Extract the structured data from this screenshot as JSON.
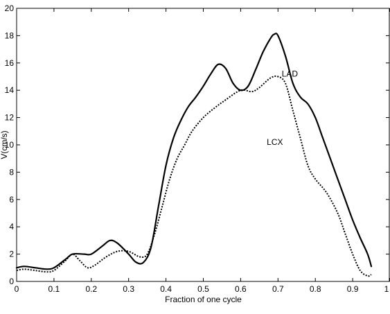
{
  "chart_data": {
    "type": "line",
    "title": "",
    "xlabel": "Fraction of one cycle",
    "ylabel": "V(cm/s)",
    "xlim": [
      0,
      1
    ],
    "ylim": [
      0,
      20
    ],
    "xticks": [
      0,
      0.1,
      0.2,
      0.3,
      0.4,
      0.5,
      0.6,
      0.7,
      0.8,
      0.9,
      1
    ],
    "xtick_labels": [
      "0",
      "0.1",
      "0.2",
      "0.3",
      "0.4",
      "0.5",
      "0.6",
      "0.7",
      "0.8",
      "0.9",
      "1"
    ],
    "yticks": [
      0,
      2,
      4,
      6,
      8,
      10,
      12,
      14,
      16,
      18,
      20
    ],
    "ytick_labels": [
      "0",
      "2",
      "4",
      "6",
      "8",
      "10",
      "12",
      "14",
      "16",
      "18",
      "20"
    ],
    "grid": false,
    "series": [
      {
        "name": "LAD",
        "style": "solid",
        "color": "#000000",
        "label_at": [
          0.71,
          15
        ],
        "points": [
          [
            0,
            1.0
          ],
          [
            0.02,
            1.1
          ],
          [
            0.05,
            1.0
          ],
          [
            0.08,
            0.9
          ],
          [
            0.1,
            1.0
          ],
          [
            0.13,
            1.6
          ],
          [
            0.15,
            2.0
          ],
          [
            0.18,
            2.0
          ],
          [
            0.2,
            2.0
          ],
          [
            0.23,
            2.6
          ],
          [
            0.25,
            3.0
          ],
          [
            0.27,
            2.8
          ],
          [
            0.3,
            2.0
          ],
          [
            0.32,
            1.4
          ],
          [
            0.34,
            1.4
          ],
          [
            0.36,
            2.5
          ],
          [
            0.38,
            5.5
          ],
          [
            0.4,
            8.5
          ],
          [
            0.42,
            10.5
          ],
          [
            0.44,
            11.8
          ],
          [
            0.46,
            12.8
          ],
          [
            0.48,
            13.5
          ],
          [
            0.5,
            14.3
          ],
          [
            0.52,
            15.2
          ],
          [
            0.54,
            15.9
          ],
          [
            0.56,
            15.6
          ],
          [
            0.58,
            14.5
          ],
          [
            0.6,
            14.0
          ],
          [
            0.62,
            14.3
          ],
          [
            0.64,
            15.5
          ],
          [
            0.66,
            16.8
          ],
          [
            0.68,
            17.8
          ],
          [
            0.69,
            18.1
          ],
          [
            0.7,
            18.0
          ],
          [
            0.72,
            16.5
          ],
          [
            0.74,
            14.5
          ],
          [
            0.76,
            13.5
          ],
          [
            0.78,
            13.0
          ],
          [
            0.8,
            12.0
          ],
          [
            0.82,
            10.5
          ],
          [
            0.84,
            9.0
          ],
          [
            0.86,
            7.5
          ],
          [
            0.88,
            6.0
          ],
          [
            0.9,
            4.5
          ],
          [
            0.92,
            3.2
          ],
          [
            0.94,
            2.0
          ],
          [
            0.95,
            1.1
          ]
        ]
      },
      {
        "name": "LCX",
        "style": "dotted",
        "color": "#000000",
        "label_at": [
          0.67,
          10
        ],
        "points": [
          [
            0,
            0.8
          ],
          [
            0.02,
            0.9
          ],
          [
            0.05,
            0.8
          ],
          [
            0.08,
            0.7
          ],
          [
            0.1,
            0.8
          ],
          [
            0.13,
            1.5
          ],
          [
            0.15,
            2.0
          ],
          [
            0.17,
            1.5
          ],
          [
            0.19,
            1.0
          ],
          [
            0.21,
            1.2
          ],
          [
            0.24,
            1.8
          ],
          [
            0.27,
            2.2
          ],
          [
            0.3,
            2.2
          ],
          [
            0.33,
            1.8
          ],
          [
            0.35,
            2.0
          ],
          [
            0.37,
            3.5
          ],
          [
            0.39,
            5.5
          ],
          [
            0.41,
            7.5
          ],
          [
            0.43,
            9.0
          ],
          [
            0.45,
            10.0
          ],
          [
            0.47,
            11.0
          ],
          [
            0.5,
            12.0
          ],
          [
            0.53,
            12.7
          ],
          [
            0.56,
            13.3
          ],
          [
            0.6,
            14.0
          ],
          [
            0.63,
            13.9
          ],
          [
            0.65,
            14.2
          ],
          [
            0.68,
            14.9
          ],
          [
            0.7,
            15.0
          ],
          [
            0.72,
            14.5
          ],
          [
            0.74,
            12.5
          ],
          [
            0.76,
            10.5
          ],
          [
            0.78,
            8.5
          ],
          [
            0.8,
            7.5
          ],
          [
            0.83,
            6.5
          ],
          [
            0.86,
            5.0
          ],
          [
            0.88,
            3.5
          ],
          [
            0.9,
            2.0
          ],
          [
            0.92,
            0.8
          ],
          [
            0.94,
            0.4
          ],
          [
            0.95,
            0.5
          ]
        ]
      }
    ]
  }
}
